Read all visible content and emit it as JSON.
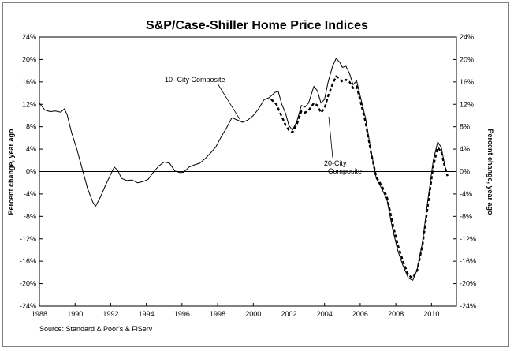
{
  "chart_data": {
    "type": "line",
    "title": "S&P/Case-Shiller Home Price Indices",
    "ylabel_left": "Percent change, year ago",
    "ylabel_right": "Percent change, year ago",
    "xlim": [
      1988,
      2011.4
    ],
    "ylim": [
      -24,
      24
    ],
    "x_ticks": [
      1988,
      1990,
      1992,
      1994,
      1996,
      1998,
      2000,
      2002,
      2004,
      2006,
      2008,
      2010
    ],
    "y_ticks": [
      24,
      20,
      16,
      12,
      8,
      4,
      0,
      -4,
      -8,
      -12,
      -16,
      -20,
      -24
    ],
    "grid": false,
    "legend": "none",
    "zero_line": true,
    "annotations": [
      {
        "text": "10 -City Composite",
        "series": "10-City Composite"
      },
      {
        "text": "20-City",
        "series": "20-City Composite"
      },
      {
        "text": "Composite",
        "series": "20-City Composite"
      }
    ],
    "source": "Source: Standard & Poor's & FiServ",
    "series": [
      {
        "name": "10-City Composite",
        "style": "solid",
        "color": "#000000",
        "points": [
          [
            1988.0,
            12.2
          ],
          [
            1988.3,
            11.0
          ],
          [
            1988.6,
            10.7
          ],
          [
            1988.9,
            10.8
          ],
          [
            1989.2,
            10.6
          ],
          [
            1989.4,
            11.2
          ],
          [
            1989.55,
            10.2
          ],
          [
            1989.8,
            7.0
          ],
          [
            1990.1,
            4.0
          ],
          [
            1990.4,
            0.5
          ],
          [
            1990.7,
            -3.0
          ],
          [
            1991.0,
            -5.5
          ],
          [
            1991.15,
            -6.2
          ],
          [
            1991.4,
            -4.7
          ],
          [
            1991.7,
            -2.5
          ],
          [
            1992.0,
            -0.5
          ],
          [
            1992.2,
            0.8
          ],
          [
            1992.4,
            0.2
          ],
          [
            1992.6,
            -1.2
          ],
          [
            1992.9,
            -1.6
          ],
          [
            1993.2,
            -1.5
          ],
          [
            1993.5,
            -2.0
          ],
          [
            1993.8,
            -1.8
          ],
          [
            1994.1,
            -1.4
          ],
          [
            1994.4,
            -0.1
          ],
          [
            1994.7,
            1.0
          ],
          [
            1995.0,
            1.7
          ],
          [
            1995.3,
            1.5
          ],
          [
            1995.6,
            0.1
          ],
          [
            1995.9,
            -0.2
          ],
          [
            1996.1,
            -0.1
          ],
          [
            1996.4,
            0.8
          ],
          [
            1996.7,
            1.2
          ],
          [
            1997.0,
            1.5
          ],
          [
            1997.3,
            2.3
          ],
          [
            1997.6,
            3.3
          ],
          [
            1997.9,
            4.4
          ],
          [
            1998.2,
            6.2
          ],
          [
            1998.5,
            7.8
          ],
          [
            1998.8,
            9.6
          ],
          [
            1999.1,
            9.2
          ],
          [
            1999.4,
            8.8
          ],
          [
            1999.7,
            9.2
          ],
          [
            2000.0,
            10.0
          ],
          [
            2000.3,
            11.2
          ],
          [
            2000.6,
            12.8
          ],
          [
            2000.9,
            13.2
          ],
          [
            2001.2,
            14.1
          ],
          [
            2001.4,
            14.3
          ],
          [
            2001.6,
            12.0
          ],
          [
            2001.8,
            10.5
          ],
          [
            2002.0,
            8.2
          ],
          [
            2002.2,
            7.4
          ],
          [
            2002.45,
            9.0
          ],
          [
            2002.7,
            11.8
          ],
          [
            2002.9,
            11.5
          ],
          [
            2003.1,
            12.2
          ],
          [
            2003.4,
            15.2
          ],
          [
            2003.6,
            14.4
          ],
          [
            2003.8,
            12.2
          ],
          [
            2004.0,
            12.9
          ],
          [
            2004.2,
            16.0
          ],
          [
            2004.45,
            18.8
          ],
          [
            2004.65,
            20.2
          ],
          [
            2004.85,
            19.5
          ],
          [
            2005.0,
            18.6
          ],
          [
            2005.2,
            18.8
          ],
          [
            2005.4,
            17.5
          ],
          [
            2005.6,
            15.5
          ],
          [
            2005.8,
            16.2
          ],
          [
            2006.0,
            13.5
          ],
          [
            2006.3,
            9.5
          ],
          [
            2006.6,
            3.8
          ],
          [
            2006.9,
            -1.2
          ],
          [
            2007.2,
            -3.0
          ],
          [
            2007.5,
            -5.0
          ],
          [
            2007.8,
            -10.0
          ],
          [
            2008.1,
            -14.0
          ],
          [
            2008.4,
            -16.8
          ],
          [
            2008.7,
            -19.0
          ],
          [
            2008.95,
            -19.4
          ],
          [
            2009.2,
            -17.5
          ],
          [
            2009.5,
            -12.5
          ],
          [
            2009.8,
            -5.0
          ],
          [
            2010.1,
            2.0
          ],
          [
            2010.35,
            5.3
          ],
          [
            2010.55,
            4.3
          ],
          [
            2010.75,
            1.0
          ],
          [
            2010.82,
            0.3
          ]
        ]
      },
      {
        "name": "20-City Composite",
        "style": "dashed",
        "color": "#000000",
        "points": [
          [
            2001.0,
            12.9
          ],
          [
            2001.3,
            12.0
          ],
          [
            2001.6,
            9.8
          ],
          [
            2001.8,
            8.4
          ],
          [
            2002.0,
            7.4
          ],
          [
            2002.2,
            7.0
          ],
          [
            2002.45,
            8.5
          ],
          [
            2002.7,
            10.8
          ],
          [
            2002.9,
            10.5
          ],
          [
            2003.1,
            10.9
          ],
          [
            2003.4,
            12.2
          ],
          [
            2003.6,
            11.8
          ],
          [
            2003.8,
            10.5
          ],
          [
            2004.0,
            11.3
          ],
          [
            2004.2,
            13.5
          ],
          [
            2004.45,
            15.6
          ],
          [
            2004.65,
            17.0
          ],
          [
            2004.85,
            16.6
          ],
          [
            2005.0,
            16.0
          ],
          [
            2005.2,
            16.4
          ],
          [
            2005.4,
            16.0
          ],
          [
            2005.6,
            14.9
          ],
          [
            2005.8,
            15.2
          ],
          [
            2006.0,
            12.7
          ],
          [
            2006.3,
            8.8
          ],
          [
            2006.6,
            3.5
          ],
          [
            2006.9,
            -1.0
          ],
          [
            2007.2,
            -2.5
          ],
          [
            2007.5,
            -4.5
          ],
          [
            2007.8,
            -9.0
          ],
          [
            2008.1,
            -13.0
          ],
          [
            2008.4,
            -16.0
          ],
          [
            2008.7,
            -18.5
          ],
          [
            2008.95,
            -19.0
          ],
          [
            2009.2,
            -17.6
          ],
          [
            2009.5,
            -13.0
          ],
          [
            2009.8,
            -6.0
          ],
          [
            2010.1,
            1.0
          ],
          [
            2010.35,
            4.3
          ],
          [
            2010.55,
            3.5
          ],
          [
            2010.75,
            0.8
          ],
          [
            2010.9,
            -0.8
          ]
        ]
      }
    ]
  }
}
